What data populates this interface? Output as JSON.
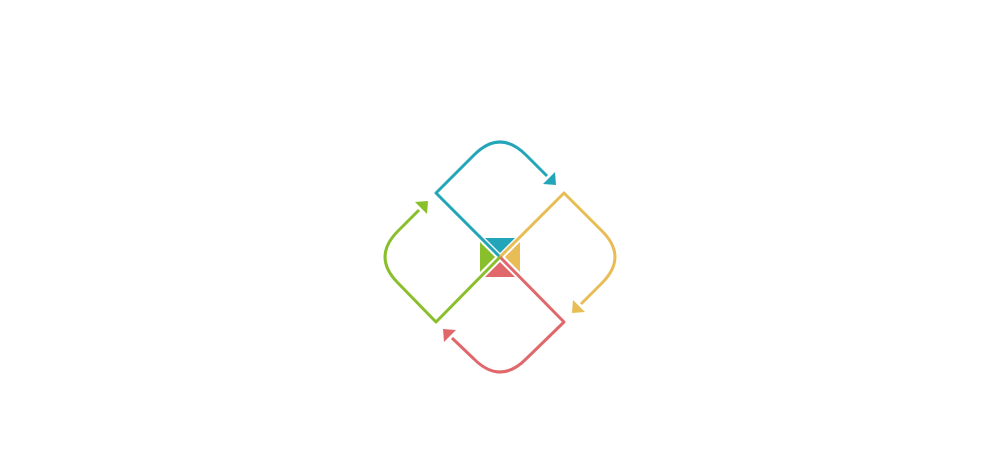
{
  "diagram": {
    "type": "four-step cycle",
    "segments": [
      {
        "id": "top",
        "color": "#23a5b9"
      },
      {
        "id": "right",
        "color": "#e9bd55"
      },
      {
        "id": "bottom",
        "color": "#e0686b"
      },
      {
        "id": "left",
        "color": "#88bf2b"
      }
    ]
  }
}
